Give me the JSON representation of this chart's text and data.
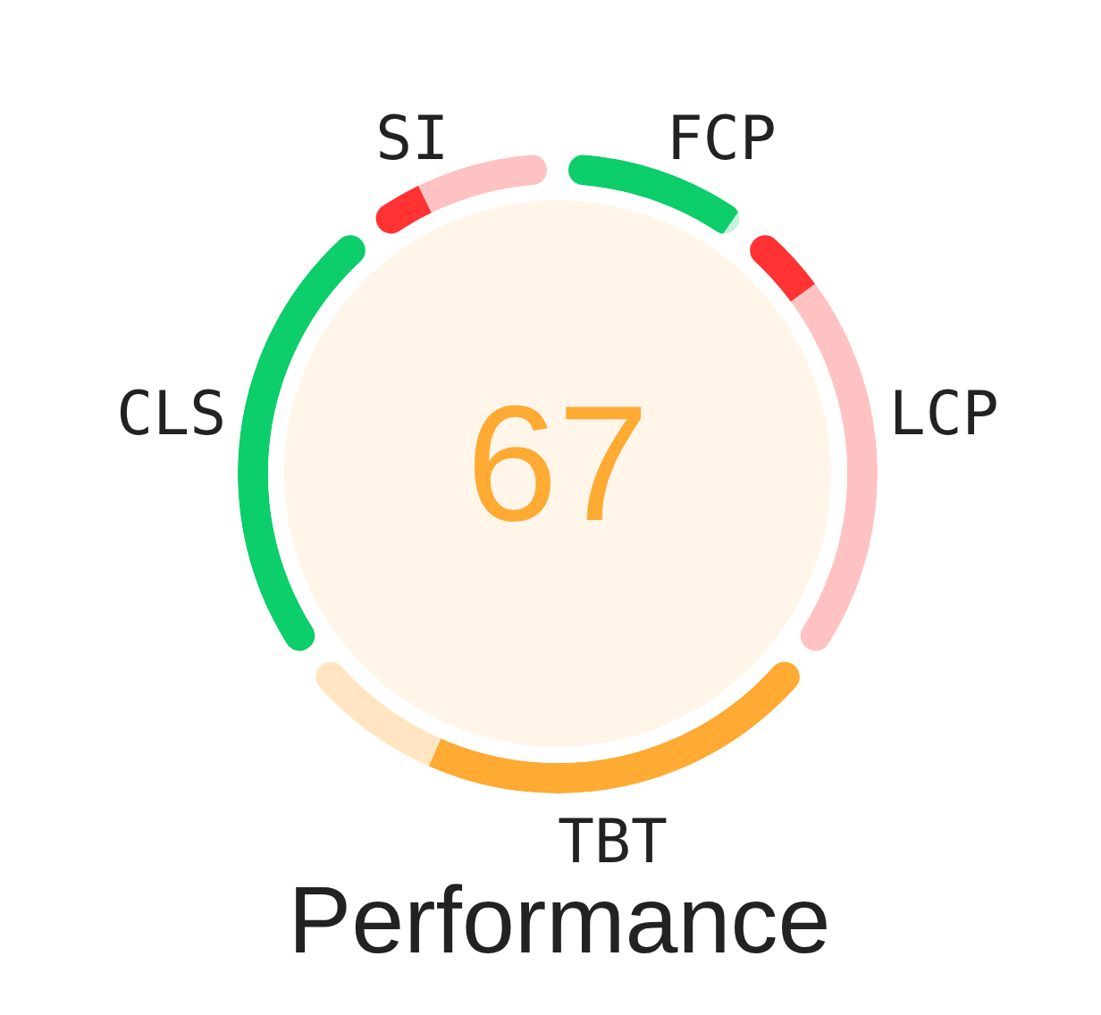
{
  "chart_data": {
    "type": "donut",
    "title": "Performance",
    "annotations": [
      "67"
    ],
    "categories": [
      "FCP",
      null,
      null,
      null,
      "LCP",
      null,
      "TBT",
      null,
      null,
      "CLS",
      null,
      null,
      "SI",
      null
    ],
    "values": [
      9.6,
      0.4,
      null,
      4,
      21,
      null,
      22,
      8,
      null,
      25,
      null,
      3,
      7,
      null
    ],
    "colors": [
      "#0cce6b",
      "#c4f3d9",
      null,
      "#ff3333",
      "#ffc2c2",
      null,
      "#ffaa33",
      "#ffe5c2",
      null,
      "#0cce6b",
      null,
      "#ff3333",
      "#ffc2c2",
      null
    ]
  }
}
